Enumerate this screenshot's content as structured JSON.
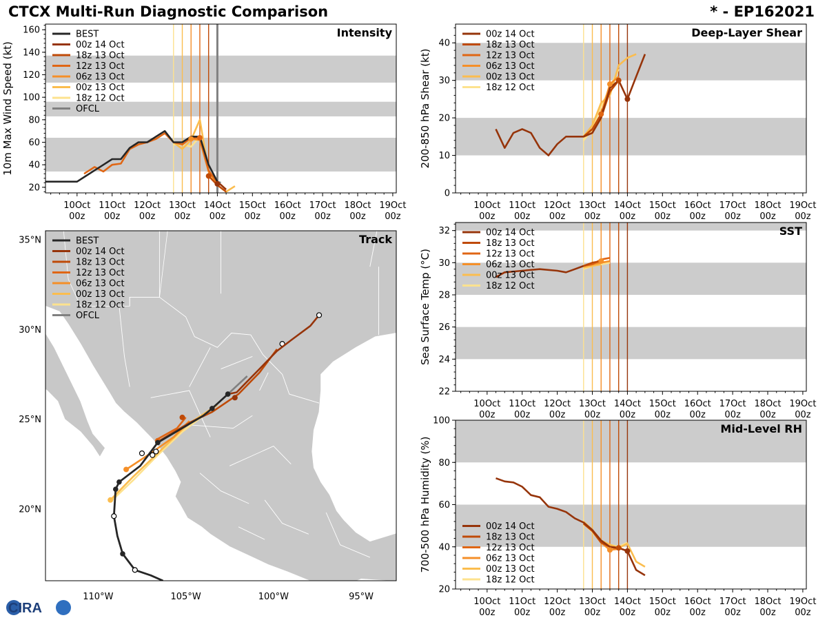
{
  "header": {
    "title": "CTCX Multi-Run Diagnostic Comparison",
    "storm_id": "* - EP162021"
  },
  "logo_text": "CIRA",
  "colors": {
    "BEST": "#262626",
    "OFCL": "#808080",
    "00z 14 Oct": "#96340a",
    "18z 13 Oct": "#bf4a07",
    "12z 13 Oct": "#e06614",
    "06z 13 Oct": "#f58f28",
    "00z 13 Oct": "#fbbd4e",
    "18z 12 Oct": "#fde28e",
    "band": "#cccccc",
    "land": "#c8c8c8"
  },
  "time_axis": {
    "ticks": [
      "10Oct 00z",
      "11Oct 00z",
      "12Oct 00z",
      "13Oct 00z",
      "14Oct 00z",
      "15Oct 00z",
      "16Oct 00z",
      "17Oct 00z",
      "18Oct 00z",
      "19Oct 00z"
    ],
    "range_days": [
      9.1,
      19.1
    ],
    "run_times": [
      {
        "run": "18z 12 Oct",
        "day": 12.75
      },
      {
        "run": "00z 13 Oct",
        "day": 13.0
      },
      {
        "run": "06z 13 Oct",
        "day": 13.25
      },
      {
        "run": "12z 13 Oct",
        "day": 13.5
      },
      {
        "run": "18z 13 Oct",
        "day": 13.75
      },
      {
        "run": "00z 14 Oct",
        "day": 14.0
      }
    ]
  },
  "chart_data": [
    {
      "id": "intensity",
      "type": "line",
      "title": "Intensity",
      "ylabel": "10m Max Wind Speed (kt)",
      "ylim": [
        15,
        165
      ],
      "yticks": [
        20,
        40,
        60,
        80,
        100,
        120,
        140,
        160
      ],
      "bands": [
        [
          34,
          64
        ],
        [
          83,
          96
        ],
        [
          113,
          137
        ]
      ],
      "legend": [
        "BEST",
        "00z 14 Oct",
        "18z 13 Oct",
        "12z 13 Oct",
        "06z 13 Oct",
        "00z 13 Oct",
        "18z 12 Oct",
        "OFCL"
      ],
      "series": [
        {
          "name": "BEST",
          "x": [
            9.0,
            9.25,
            9.5,
            9.75,
            10.0,
            10.25,
            10.5,
            10.75,
            11.0,
            11.25,
            11.5,
            11.75,
            12.0,
            12.25,
            12.5,
            12.75,
            13.0,
            13.25,
            13.5,
            13.75,
            14.0
          ],
          "y": [
            25,
            25,
            25,
            25,
            25,
            30,
            35,
            40,
            45,
            45,
            55,
            60,
            60,
            65,
            70,
            60,
            60,
            65,
            65,
            40,
            25
          ]
        },
        {
          "name": "00z 14 Oct",
          "x": [
            14.0,
            14.25
          ],
          "y": [
            25,
            18
          ]
        },
        {
          "name": "18z 13 Oct",
          "x": [
            13.75,
            14.0,
            14.25
          ],
          "y": [
            30,
            22,
            16
          ]
        },
        {
          "name": "12z 13 Oct",
          "x": [
            10.2,
            10.5,
            10.75,
            11.0,
            11.25,
            11.5,
            11.75,
            12.0,
            12.25,
            12.5,
            12.75,
            13.0,
            13.25,
            13.5,
            13.75,
            14.0
          ],
          "y": [
            32,
            38,
            34,
            40,
            41,
            54,
            58,
            60,
            63,
            68,
            60,
            58,
            64,
            64,
            35,
            24
          ]
        },
        {
          "name": "06z 13 Oct",
          "x": [
            13.25,
            13.5,
            13.75,
            14.0
          ],
          "y": [
            63,
            62,
            34,
            24
          ]
        },
        {
          "name": "00z 13 Oct",
          "x": [
            12.75,
            13.0,
            13.25,
            13.5,
            13.75,
            14.0,
            14.25,
            14.5
          ],
          "y": [
            60,
            54,
            62,
            80,
            34,
            22,
            16,
            21
          ]
        },
        {
          "name": "18z 12 Oct",
          "x": [
            12.75,
            13.0,
            13.25,
            13.5
          ],
          "y": [
            58,
            58,
            56,
            65
          ]
        },
        {
          "name": "OFCL",
          "x": [
            14.0,
            14.1
          ],
          "y": [
            25,
            24
          ]
        }
      ],
      "run_markers": [
        {
          "name": "00z 14 Oct",
          "x": 14.0,
          "y": 23
        },
        {
          "name": "18z 13 Oct",
          "x": 13.75,
          "y": 30
        },
        {
          "name": "12z 13 Oct",
          "x": 13.5,
          "y": 64
        },
        {
          "name": "06z 13 Oct",
          "x": 13.25,
          "y": 63
        }
      ],
      "extra_vlines": [
        {
          "name": "OFCL",
          "x": 14.0
        }
      ]
    },
    {
      "id": "shear",
      "type": "line",
      "title": "Deep-Layer Shear",
      "ylabel": "200-850 hPa Shear (kt)",
      "ylim": [
        0,
        45
      ],
      "yticks": [
        0,
        10,
        20,
        30,
        40
      ],
      "bands": [
        [
          10,
          20
        ],
        [
          30,
          40
        ]
      ],
      "legend": [
        "00z 14 Oct",
        "18z 13 Oct",
        "12z 13 Oct",
        "06z 13 Oct",
        "00z 13 Oct",
        "18z 12 Oct"
      ],
      "series": [
        {
          "name": "00z 14 Oct",
          "x": [
            10.25,
            10.5,
            10.75,
            11.0,
            11.25,
            11.5,
            11.75,
            12.0,
            12.25,
            12.5,
            12.75,
            13.0,
            13.25,
            13.5,
            13.75,
            14.0,
            14.25,
            14.5
          ],
          "y": [
            17,
            12,
            16,
            17,
            16,
            12,
            10,
            13,
            15,
            15,
            15,
            16,
            20,
            28,
            30,
            25,
            31,
            37
          ]
        },
        {
          "name": "18z 13 Oct",
          "x": [
            12.75,
            13.0,
            13.25,
            13.5,
            13.75
          ],
          "y": [
            15,
            17,
            21,
            27,
            30
          ]
        },
        {
          "name": "12z 13 Oct",
          "x": [
            12.75,
            13.0,
            13.25,
            13.5,
            13.75
          ],
          "y": [
            15,
            17,
            20,
            27,
            30
          ]
        },
        {
          "name": "06z 13 Oct",
          "x": [
            12.75,
            13.0,
            13.25,
            13.5,
            13.75
          ],
          "y": [
            15,
            16,
            21,
            29,
            31
          ]
        },
        {
          "name": "00z 13 Oct",
          "x": [
            12.75,
            13.0,
            13.25,
            13.5,
            13.75,
            14.0,
            14.25
          ],
          "y": [
            15,
            18,
            24,
            26,
            34,
            36,
            37
          ]
        },
        {
          "name": "18z 12 Oct",
          "x": [
            12.75,
            13.0,
            13.25,
            13.5,
            13.75
          ],
          "y": [
            14,
            17,
            23,
            28,
            33
          ]
        }
      ],
      "run_markers": [
        {
          "name": "00z 14 Oct",
          "x": 14.0,
          "y": 25
        },
        {
          "name": "18z 13 Oct",
          "x": 13.75,
          "y": 30
        },
        {
          "name": "12z 13 Oct",
          "x": 13.25,
          "y": 21
        },
        {
          "name": "06z 13 Oct",
          "x": 13.5,
          "y": 29
        }
      ]
    },
    {
      "id": "sst",
      "type": "line",
      "title": "SST",
      "ylabel": "Sea Surface Temp (°C)",
      "ylim": [
        22,
        32.5
      ],
      "yticks": [
        22,
        24,
        26,
        28,
        30,
        32
      ],
      "bands": [
        [
          24,
          26
        ],
        [
          28,
          30
        ],
        [
          32,
          32.5
        ]
      ],
      "legend": [
        "00z 14 Oct",
        "18z 13 Oct",
        "12z 13 Oct",
        "06z 13 Oct",
        "00z 13 Oct",
        "18z 12 Oct"
      ],
      "series": [
        {
          "name": "00z 14 Oct",
          "x": [
            10.25,
            10.5,
            11.0,
            11.5,
            12.0,
            12.25,
            12.5,
            12.75
          ],
          "y": [
            29.1,
            29.4,
            29.5,
            29.6,
            29.5,
            29.4,
            29.6,
            29.8
          ]
        },
        {
          "name": "18z 13 Oct",
          "x": [
            12.75,
            13.0,
            13.25
          ],
          "y": [
            29.8,
            30.0,
            30.1
          ]
        },
        {
          "name": "12z 13 Oct",
          "x": [
            12.75,
            13.0,
            13.25,
            13.5
          ],
          "y": [
            29.8,
            29.9,
            30.2,
            30.3
          ]
        },
        {
          "name": "06z 13 Oct",
          "x": [
            12.75,
            13.0,
            13.25,
            13.5
          ],
          "y": [
            29.8,
            29.9,
            30.0,
            30.1
          ]
        },
        {
          "name": "00z 13 Oct",
          "x": [
            12.75,
            13.0,
            13.25
          ],
          "y": [
            29.7,
            29.8,
            29.9
          ]
        },
        {
          "name": "18z 12 Oct",
          "x": [
            12.75,
            13.0,
            13.25,
            13.5
          ],
          "y": [
            29.6,
            29.8,
            29.9,
            30.0
          ]
        }
      ],
      "run_markers": [
        {
          "name": "06z 13 Oct",
          "x": 13.25,
          "y": 30.1
        }
      ]
    },
    {
      "id": "rh",
      "type": "line",
      "title": "Mid-Level RH",
      "ylabel": "700-500 hPa Humidity (%)",
      "ylim": [
        20,
        100
      ],
      "yticks": [
        20,
        40,
        60,
        80,
        100
      ],
      "bands": [
        [
          40,
          60
        ],
        [
          80,
          100
        ]
      ],
      "legend": [
        "00z 14 Oct",
        "18z 13 Oct",
        "12z 13 Oct",
        "06z 13 Oct",
        "00z 13 Oct",
        "18z 12 Oct"
      ],
      "legend_pos": "bottom-left",
      "series": [
        {
          "name": "00z 14 Oct",
          "x": [
            10.25,
            10.5,
            10.75,
            11.0,
            11.25,
            11.5,
            11.75,
            12.0,
            12.25,
            12.5,
            12.75,
            13.0,
            13.25,
            13.5,
            13.75,
            14.0,
            14.25,
            14.5
          ],
          "y": [
            72.5,
            71,
            70.5,
            68.5,
            64.5,
            63.5,
            59,
            58,
            56.5,
            53.5,
            51.5,
            48,
            43,
            40,
            39.5,
            38,
            29,
            26.5
          ]
        },
        {
          "name": "18z 13 Oct",
          "x": [
            12.75,
            13.0,
            13.25,
            13.5,
            13.75,
            14.0
          ],
          "y": [
            51,
            47.5,
            42,
            40,
            39.5,
            38
          ]
        },
        {
          "name": "12z 13 Oct",
          "x": [
            12.75,
            13.0,
            13.25,
            13.5,
            13.75
          ],
          "y": [
            51,
            47.5,
            42.5,
            40,
            39
          ]
        },
        {
          "name": "06z 13 Oct",
          "x": [
            12.75,
            13.0,
            13.25,
            13.5,
            13.75
          ],
          "y": [
            51,
            47.5,
            42,
            38.5,
            39
          ]
        },
        {
          "name": "00z 13 Oct",
          "x": [
            12.75,
            13.0,
            13.25,
            13.5,
            13.75,
            14.0,
            14.25,
            14.5
          ],
          "y": [
            52,
            48,
            43,
            41,
            39.5,
            41.5,
            33,
            30.5
          ]
        },
        {
          "name": "18z 12 Oct",
          "x": [
            12.75,
            13.0,
            13.25,
            13.5,
            13.75,
            14.0
          ],
          "y": [
            51,
            47,
            42,
            41,
            40,
            42
          ]
        }
      ],
      "run_markers": [
        {
          "name": "00z 14 Oct",
          "x": 14.0,
          "y": 38
        },
        {
          "name": "18z 13 Oct",
          "x": 13.75,
          "y": 39.5
        },
        {
          "name": "06z 13 Oct",
          "x": 13.5,
          "y": 38.5
        }
      ]
    },
    {
      "id": "track",
      "type": "line",
      "title": "Track",
      "xlim": [
        -113,
        -93
      ],
      "ylim": [
        16,
        35.5
      ],
      "xticks": [
        {
          "value": -110,
          "label": "110°W"
        },
        {
          "value": -105,
          "label": "105°W"
        },
        {
          "value": -100,
          "label": "100°W"
        },
        {
          "value": -95,
          "label": "95°W"
        }
      ],
      "yticks": [
        {
          "value": 20,
          "label": "20°N"
        },
        {
          "value": 25,
          "label": "25°N"
        },
        {
          "value": 30,
          "label": "30°N"
        },
        {
          "value": 35,
          "label": "35°N"
        }
      ],
      "legend": [
        "BEST",
        "00z 14 Oct",
        "18z 13 Oct",
        "12z 13 Oct",
        "06z 13 Oct",
        "00z 13 Oct",
        "18z 12 Oct",
        "OFCL"
      ],
      "best_track": {
        "lon": [
          -106.3,
          -107.0,
          -107.9,
          -108.6,
          -108.9,
          -109.1,
          -109.0,
          -108.8,
          -107.6,
          -106.6,
          -104.0,
          -103.5,
          -102.6
        ],
        "lat": [
          16.0,
          16.3,
          16.6,
          17.5,
          18.5,
          19.6,
          21.1,
          21.5,
          22.4,
          23.7,
          25.2,
          25.6,
          26.4
        ],
        "open_points": [
          [
            -107.9,
            16.6
          ],
          [
            -109.1,
            19.6
          ],
          [
            -107.5,
            23.1
          ],
          [
            -106.9,
            23.0
          ],
          [
            -106.7,
            23.2
          ]
        ],
        "filled_points": [
          [
            -108.6,
            17.5
          ],
          [
            -109.0,
            21.1
          ],
          [
            -108.8,
            21.5
          ],
          [
            -106.6,
            23.7
          ],
          [
            -103.5,
            25.6
          ],
          [
            -102.6,
            26.4
          ]
        ]
      },
      "tracks": [
        {
          "name": "00z 14 Oct",
          "lon": [
            -102.6,
            -102.1,
            -101.6,
            -100.8,
            -99.8,
            -99.0,
            -97.9,
            -97.4
          ],
          "lat": [
            26.4,
            26.5,
            27.0,
            27.8,
            28.8,
            29.4,
            30.2,
            30.8
          ],
          "start": [
            -102.2,
            26.2
          ],
          "end": [
            -97.4,
            30.8
          ]
        },
        {
          "name": "18z 13 Oct",
          "lon": [
            -106.5,
            -104.8,
            -103.5,
            -102.0,
            -100.8,
            -99.8
          ],
          "lat": [
            23.8,
            24.8,
            25.4,
            26.4,
            27.6,
            28.9
          ],
          "end": [
            -99.5,
            29.2
          ]
        },
        {
          "name": "12z 13 Oct",
          "lon": [
            -106.6,
            -105.5,
            -105.0
          ],
          "lat": [
            23.9,
            24.5,
            25.1
          ]
        },
        {
          "name": "06z 13 Oct",
          "lon": [
            -108.4,
            -107.0,
            -105.7,
            -104.8
          ],
          "lat": [
            22.2,
            23.1,
            24.0,
            24.9
          ]
        },
        {
          "name": "00z 13 Oct",
          "lon": [
            -109.3,
            -108.0,
            -106.5,
            -104.9,
            -103.2
          ],
          "lat": [
            20.5,
            21.8,
            23.2,
            24.7,
            25.8
          ]
        },
        {
          "name": "18z 12 Oct",
          "lon": [
            -109.3,
            -108.0,
            -106.7,
            -105.2,
            -103.6
          ],
          "lat": [
            20.4,
            21.6,
            22.9,
            24.3,
            25.5
          ]
        },
        {
          "name": "OFCL",
          "lon": [
            -102.6,
            -101.5
          ],
          "lat": [
            26.4,
            27.4
          ]
        }
      ],
      "track_markers": [
        {
          "name": "18z 13 Oct",
          "lon": -105.2,
          "lat": 25.1
        },
        {
          "name": "06z 13 Oct",
          "lon": -108.4,
          "lat": 22.2
        },
        {
          "name": "00z 13 Oct",
          "lon": -109.3,
          "lat": 20.5
        },
        {
          "name": "12z 13 Oct",
          "lon": -106.6,
          "lat": 23.8
        },
        {
          "name": "OFCL",
          "lon": -102.6,
          "lat": 26.4
        }
      ]
    }
  ]
}
